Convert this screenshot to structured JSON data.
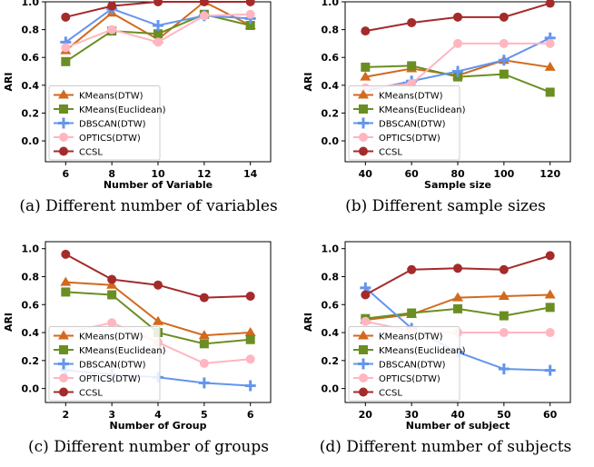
{
  "chart_data": [
    {
      "type": "line",
      "caption": "(a) Different number of variables",
      "xlabel": "Number of Variable",
      "ylabel": "ARI",
      "x": [
        6,
        8,
        10,
        12,
        14
      ],
      "xticks": [
        "6",
        "8",
        "10",
        "12",
        "14"
      ],
      "ylim": [
        -0.15,
        1.0
      ],
      "yticks": [
        "0.0",
        "0.2",
        "0.4",
        "0.6",
        "0.8",
        "1.0"
      ],
      "legend": "lower-left",
      "series": [
        {
          "name": "KMeans(DTW)",
          "marker": "triangle",
          "color": "#d2691e",
          "values": [
            0.65,
            0.92,
            0.73,
            1.0,
            0.83
          ]
        },
        {
          "name": "KMeans(Euclidean)",
          "marker": "square",
          "color": "#6b8e23",
          "values": [
            0.57,
            0.79,
            0.77,
            0.91,
            0.83
          ]
        },
        {
          "name": "DBSCAN(DTW)",
          "marker": "plus",
          "color": "#6495ed",
          "values": [
            0.71,
            0.95,
            0.83,
            0.9,
            0.88
          ]
        },
        {
          "name": "OPTICS(DTW)",
          "marker": "circle",
          "color": "#ffb6c1",
          "values": [
            0.67,
            0.8,
            0.71,
            0.9,
            0.91
          ]
        },
        {
          "name": "CCSL",
          "marker": "circle",
          "color": "#a52a2a",
          "values": [
            0.89,
            0.97,
            1.0,
            1.0,
            1.0
          ]
        }
      ]
    },
    {
      "type": "line",
      "caption": "(b) Different sample sizes",
      "xlabel": "Sample size",
      "ylabel": "ARI",
      "x": [
        40,
        60,
        80,
        100,
        120
      ],
      "xticks": [
        "40",
        "60",
        "80",
        "100",
        "120"
      ],
      "ylim": [
        -0.15,
        1.0
      ],
      "yticks": [
        "0.0",
        "0.2",
        "0.4",
        "0.6",
        "0.8",
        "1.0"
      ],
      "legend": "lower-left",
      "series": [
        {
          "name": "KMeans(DTW)",
          "marker": "triangle",
          "color": "#d2691e",
          "values": [
            0.46,
            0.52,
            0.47,
            0.58,
            0.53
          ]
        },
        {
          "name": "KMeans(Euclidean)",
          "marker": "square",
          "color": "#6b8e23",
          "values": [
            0.53,
            0.54,
            0.46,
            0.48,
            0.35
          ]
        },
        {
          "name": "DBSCAN(DTW)",
          "marker": "plus",
          "color": "#6495ed",
          "values": [
            0.36,
            0.43,
            0.5,
            0.58,
            0.74
          ]
        },
        {
          "name": "OPTICS(DTW)",
          "marker": "circle",
          "color": "#ffb6c1",
          "values": [
            0.38,
            0.41,
            0.7,
            0.7,
            0.7
          ]
        },
        {
          "name": "CCSL",
          "marker": "circle",
          "color": "#a52a2a",
          "values": [
            0.79,
            0.85,
            0.89,
            0.89,
            0.99
          ]
        }
      ]
    },
    {
      "type": "line",
      "caption": "(c) Different number of groups",
      "xlabel": "Number of Group",
      "ylabel": "ARI",
      "x": [
        2,
        3,
        4,
        5,
        6
      ],
      "xticks": [
        "2",
        "3",
        "4",
        "5",
        "6"
      ],
      "ylim": [
        -0.1,
        1.05
      ],
      "yticks": [
        "0.0",
        "0.2",
        "0.4",
        "0.6",
        "0.8",
        "1.0"
      ],
      "legend": "lower-left",
      "series": [
        {
          "name": "KMeans(DTW)",
          "marker": "triangle",
          "color": "#d2691e",
          "values": [
            0.76,
            0.74,
            0.48,
            0.38,
            0.4
          ]
        },
        {
          "name": "KMeans(Euclidean)",
          "marker": "square",
          "color": "#6b8e23",
          "values": [
            0.69,
            0.67,
            0.4,
            0.32,
            0.35
          ]
        },
        {
          "name": "DBSCAN(DTW)",
          "marker": "plus",
          "color": "#6495ed",
          "values": [
            0.13,
            0.1,
            0.08,
            0.04,
            0.02
          ]
        },
        {
          "name": "OPTICS(DTW)",
          "marker": "circle",
          "color": "#ffb6c1",
          "values": [
            0.4,
            0.47,
            0.33,
            0.18,
            0.21
          ]
        },
        {
          "name": "CCSL",
          "marker": "circle",
          "color": "#a52a2a",
          "values": [
            0.96,
            0.78,
            0.74,
            0.65,
            0.66
          ]
        }
      ]
    },
    {
      "type": "line",
      "caption": "(d) Different number of subjects",
      "xlabel": "Number of subject",
      "ylabel": "ARI",
      "x": [
        20,
        30,
        40,
        50,
        60
      ],
      "xticks": [
        "20",
        "30",
        "40",
        "50",
        "60"
      ],
      "ylim": [
        -0.1,
        1.05
      ],
      "yticks": [
        "0.0",
        "0.2",
        "0.4",
        "0.6",
        "0.8",
        "1.0"
      ],
      "legend": "lower-left",
      "series": [
        {
          "name": "KMeans(DTW)",
          "marker": "triangle",
          "color": "#d2691e",
          "values": [
            0.49,
            0.53,
            0.65,
            0.66,
            0.67
          ]
        },
        {
          "name": "KMeans(Euclidean)",
          "marker": "square",
          "color": "#6b8e23",
          "values": [
            0.5,
            0.54,
            0.57,
            0.52,
            0.58
          ]
        },
        {
          "name": "DBSCAN(DTW)",
          "marker": "plus",
          "color": "#6495ed",
          "values": [
            0.72,
            0.43,
            0.26,
            0.14,
            0.13
          ]
        },
        {
          "name": "OPTICS(DTW)",
          "marker": "circle",
          "color": "#ffb6c1",
          "values": [
            0.48,
            0.41,
            0.4,
            0.4,
            0.4
          ]
        },
        {
          "name": "CCSL",
          "marker": "circle",
          "color": "#a52a2a",
          "values": [
            0.67,
            0.85,
            0.86,
            0.85,
            0.95
          ]
        }
      ]
    }
  ]
}
